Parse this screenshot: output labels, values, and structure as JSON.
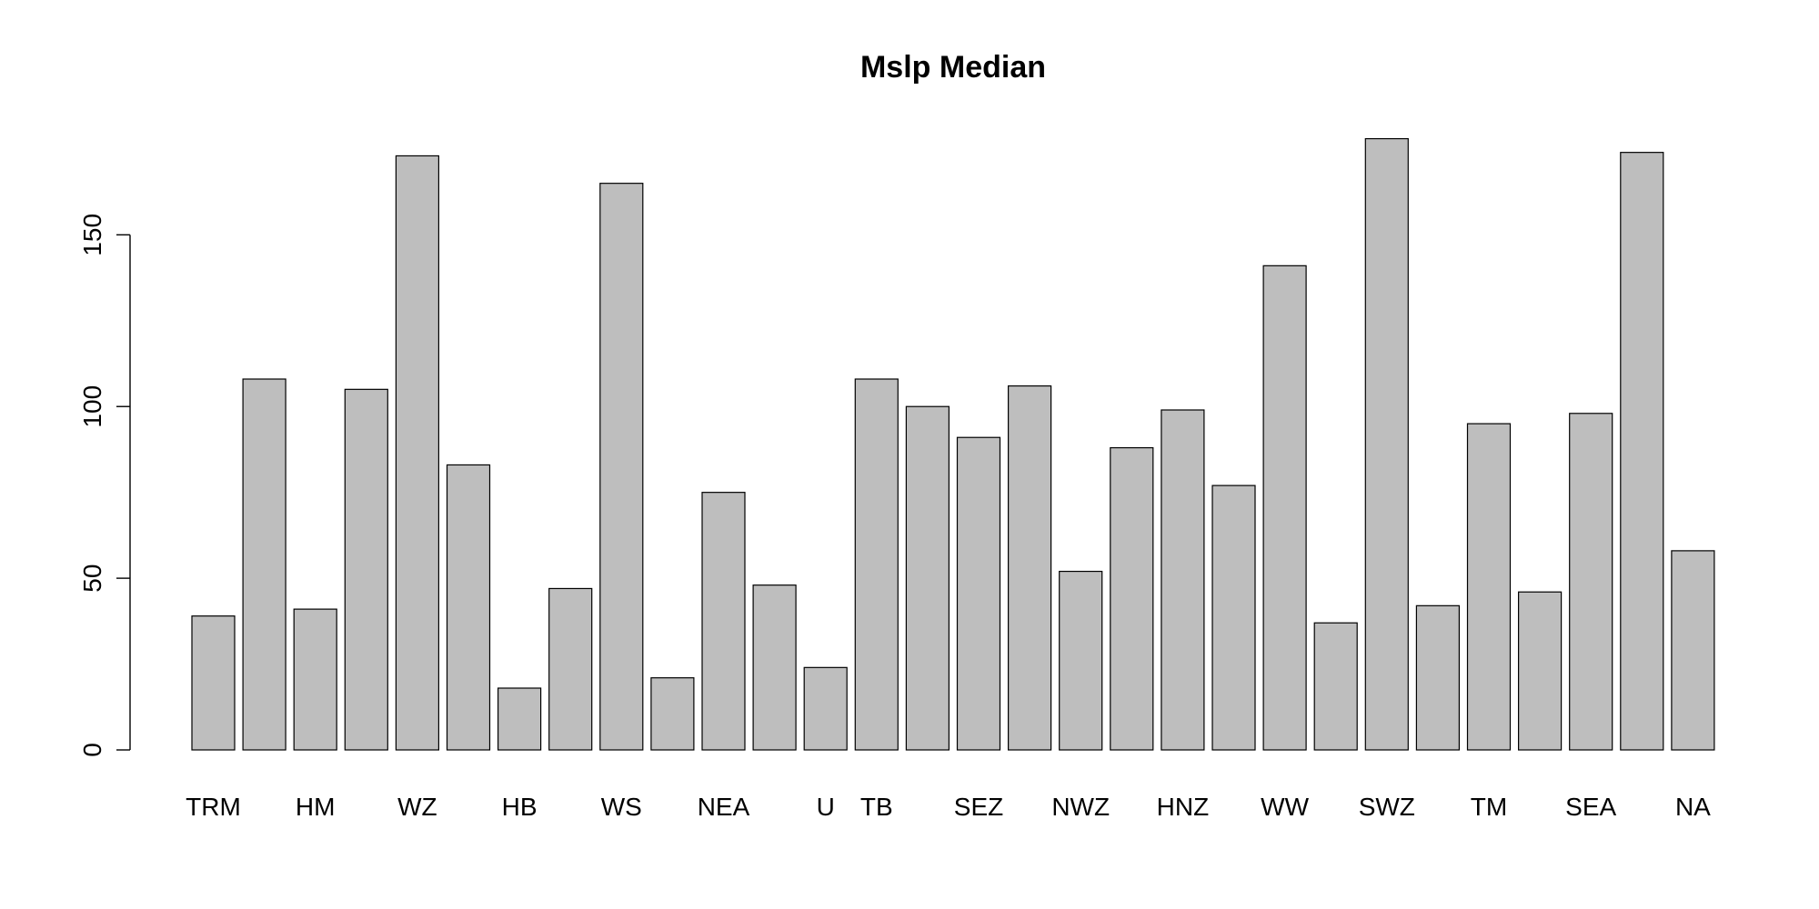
{
  "chart_data": {
    "type": "bar",
    "title": "Mslp Median",
    "xlabel": "",
    "ylabel": "",
    "ylim": [
      0,
      180
    ],
    "yticks": [
      0,
      50,
      100,
      150
    ],
    "categories": [
      "TRM",
      "",
      "HM",
      "",
      "WZ",
      "",
      "HB",
      "",
      "WS",
      "",
      "NEA",
      "",
      "U",
      "TB",
      "",
      "SEZ",
      "",
      "NWZ",
      "",
      "HNZ",
      "",
      "WW",
      "",
      "SWZ",
      "",
      "TM",
      "",
      "SEA",
      "",
      "NA"
    ],
    "values": [
      39,
      108,
      41,
      105,
      173,
      83,
      18,
      47,
      165,
      21,
      75,
      48,
      24,
      108,
      100,
      91,
      106,
      52,
      88,
      99,
      77,
      141,
      37,
      178,
      42,
      95,
      46,
      98,
      174,
      58
    ],
    "bar_color": "#bebebe",
    "border_color": "#000000",
    "grid": false,
    "legend": "none"
  }
}
